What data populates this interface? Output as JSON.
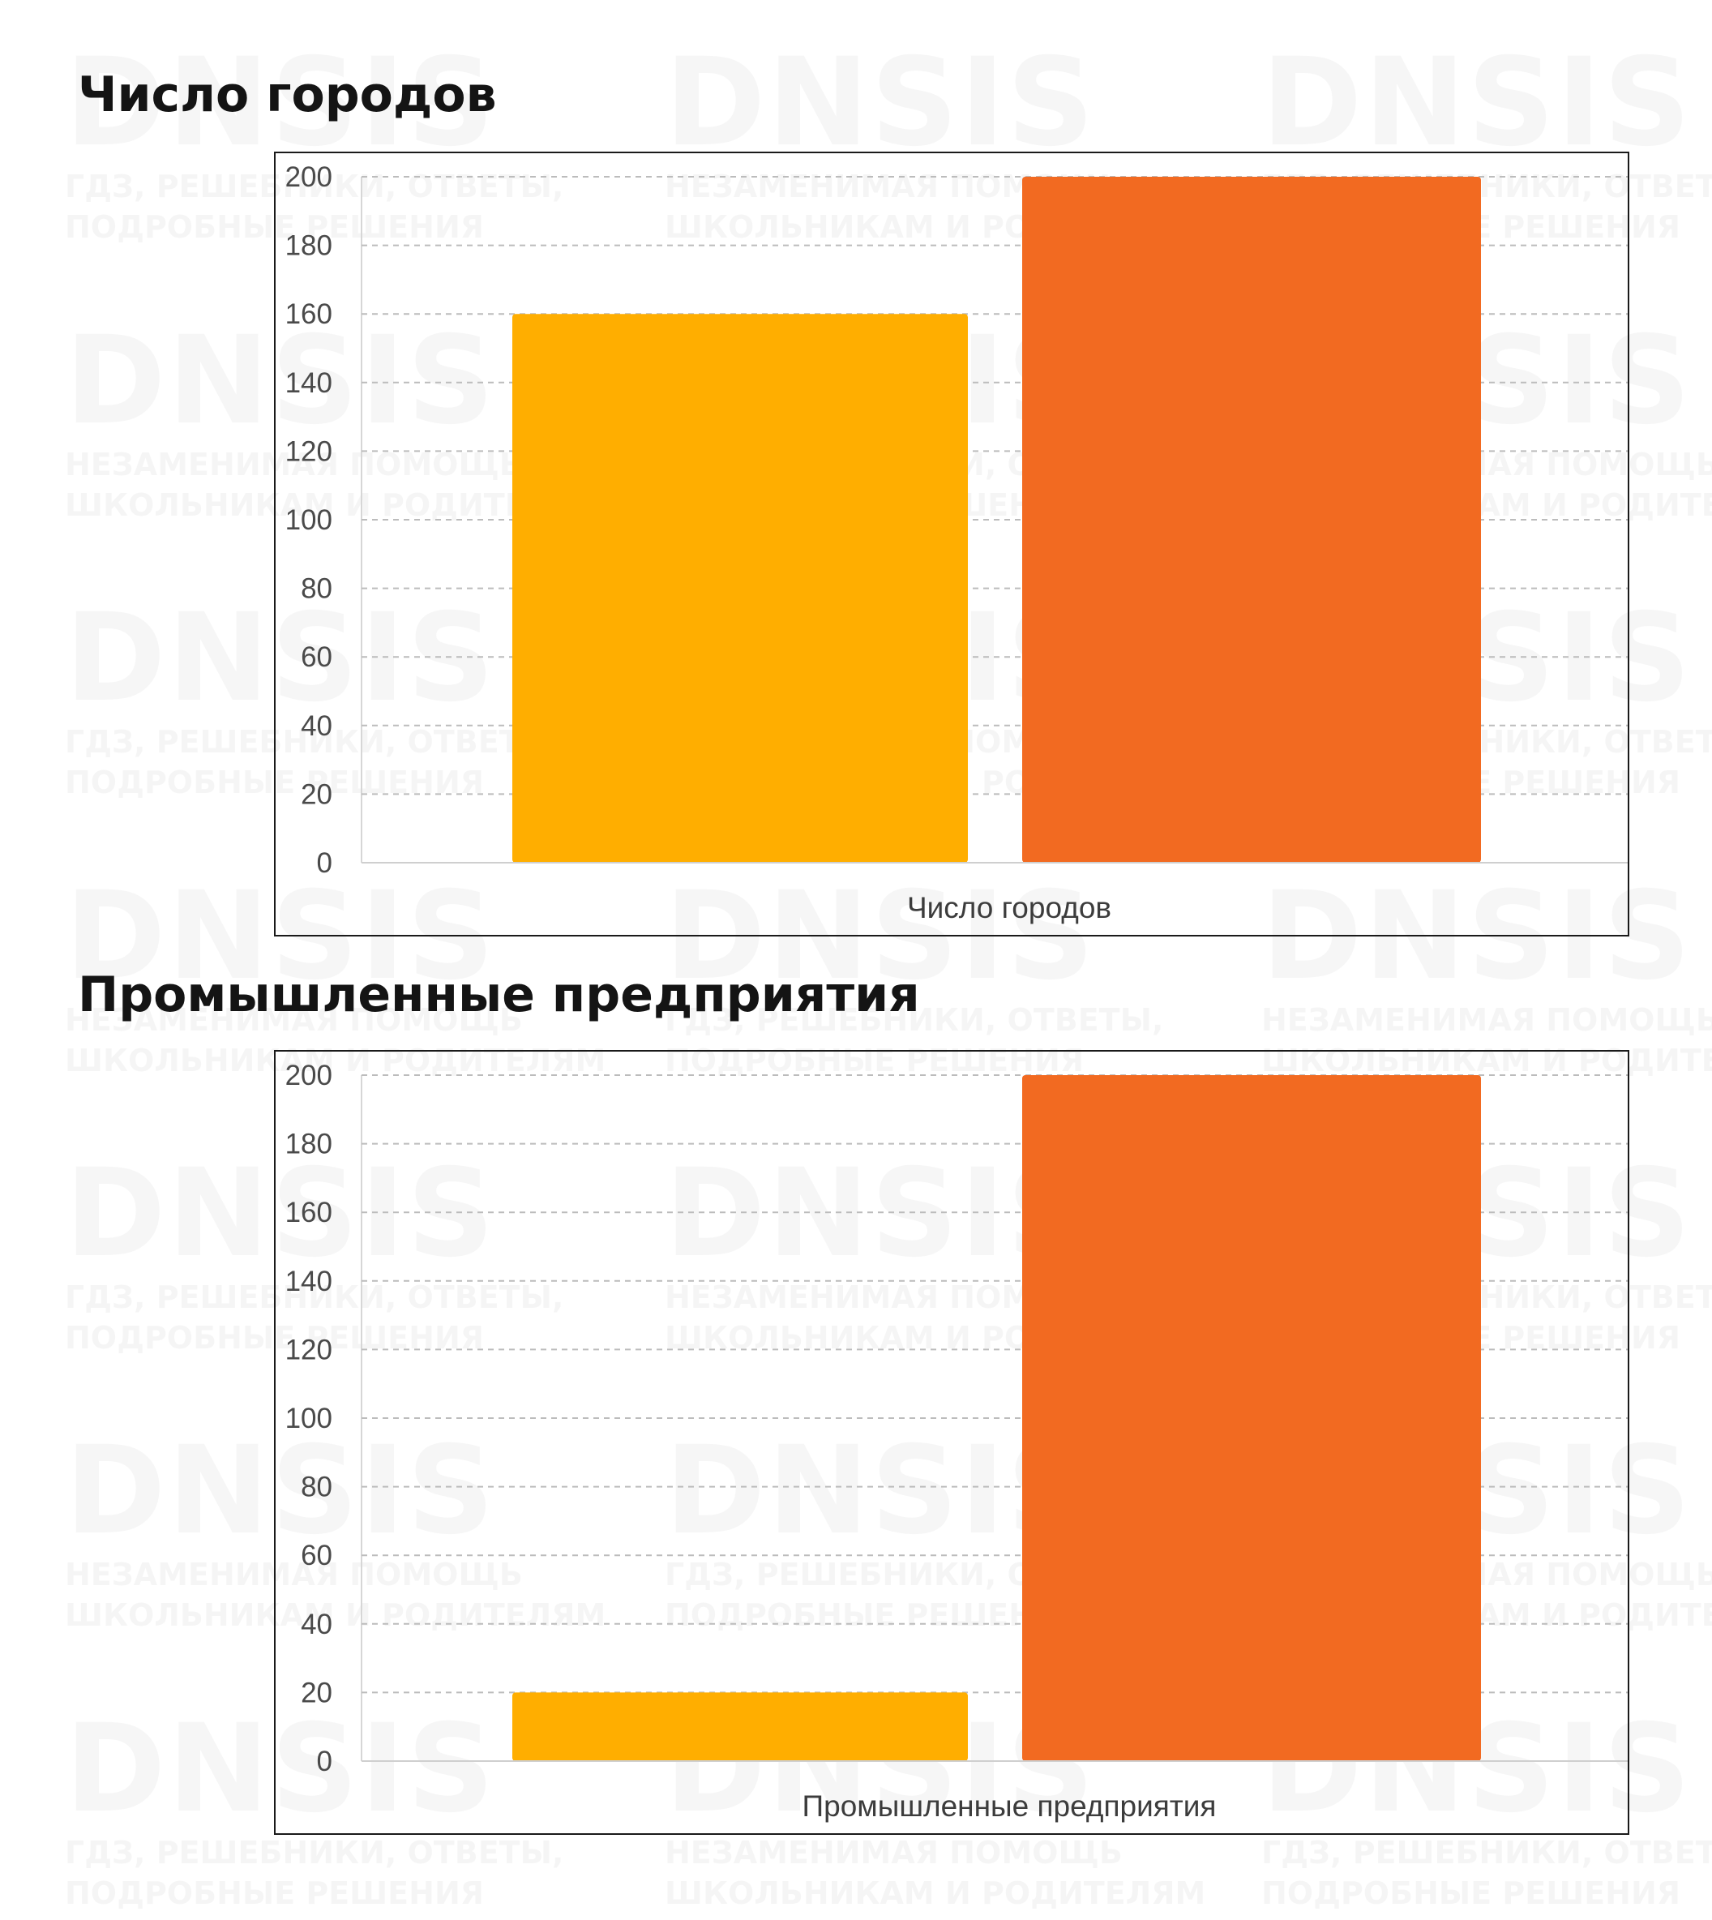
{
  "watermark": {
    "brand": "DNSIS",
    "tagline_a_line1": "ГДЗ, РЕШЕБНИКИ, ОТВЕТЫ,",
    "tagline_a_line2": "ПОДРОБНЫЕ РЕШЕНИЯ",
    "tagline_b_line1": "НЕЗАМЕНИМАЯ ПОМОЩЬ",
    "tagline_b_line2": "ШКОЛЬНИКАМ И РОДИТЕЛЯМ"
  },
  "chart_data": [
    {
      "type": "bar",
      "title": "Число городов",
      "xlabel": "Число городов",
      "ylabel": "",
      "ylim": [
        0,
        200
      ],
      "yticks": [
        0,
        20,
        40,
        60,
        80,
        100,
        120,
        140,
        160,
        180,
        200
      ],
      "grid": true,
      "series": [
        {
          "values": [
            160
          ],
          "color": "#FFAE00"
        },
        {
          "values": [
            200
          ],
          "color": "#F26A21"
        }
      ]
    },
    {
      "type": "bar",
      "title": "Промышленные предприятия",
      "xlabel": "Промышленные предприятия",
      "ylabel": "",
      "ylim": [
        0,
        200
      ],
      "yticks": [
        0,
        20,
        40,
        60,
        80,
        100,
        120,
        140,
        160,
        180,
        200
      ],
      "grid": true,
      "series": [
        {
          "values": [
            20
          ],
          "color": "#FFAE00"
        },
        {
          "values": [
            200
          ],
          "color": "#F26A21"
        }
      ]
    }
  ]
}
